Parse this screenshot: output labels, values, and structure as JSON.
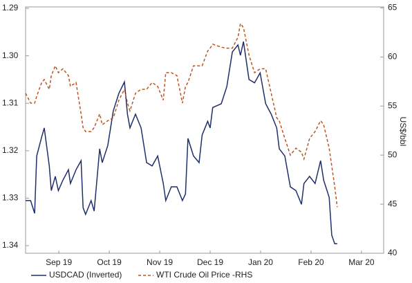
{
  "chart_data": {
    "type": "line",
    "y2label": "US$/bbl",
    "x": [
      -0.16,
      -0.06,
      0.02,
      0.06,
      0.16,
      0.21,
      0.31,
      0.35,
      0.43,
      0.49,
      0.58,
      0.69,
      0.73,
      0.84,
      0.94,
      0.98,
      1.03,
      1.14,
      1.2,
      1.31,
      1.36,
      1.47,
      1.58,
      1.69,
      1.8,
      1.86,
      1.91,
      2.02,
      2.13,
      2.24,
      2.35,
      2.46,
      2.57,
      2.62,
      2.73,
      2.84,
      2.95,
      3.01,
      3.06,
      3.17,
      3.28,
      3.34,
      3.45,
      3.5,
      3.55,
      3.72,
      3.83,
      3.94,
      4.05,
      4.1,
      4.16,
      4.27,
      4.38,
      4.49,
      4.6,
      4.71,
      4.82,
      4.87,
      4.98,
      5.09,
      5.2,
      5.31,
      5.36,
      5.47,
      5.58,
      5.69,
      5.75,
      5.86,
      5.91,
      5.97,
      6.02
    ],
    "series": [
      {
        "name": "USDCAD (Inverted)",
        "color": "#1f2d6b",
        "dash": "none",
        "values": [
          1.3305,
          1.3305,
          1.3332,
          1.3211,
          1.3171,
          1.3152,
          1.3232,
          1.3284,
          1.3254,
          1.3284,
          1.3262,
          1.324,
          1.3269,
          1.324,
          1.3221,
          1.332,
          1.3334,
          1.3305,
          1.3327,
          1.3196,
          1.3225,
          1.3189,
          1.3116,
          1.3079,
          1.3055,
          1.3123,
          1.3152,
          1.3123,
          1.3152,
          1.3225,
          1.3232,
          1.3211,
          1.3269,
          1.3305,
          1.3276,
          1.3276,
          1.3305,
          1.3291,
          1.3174,
          1.3211,
          1.3225,
          1.3167,
          1.3138,
          1.3152,
          1.3109,
          1.3101,
          1.3065,
          1.2992,
          1.2977,
          1.2999,
          1.297,
          1.305,
          1.3057,
          1.3036,
          1.3101,
          1.3123,
          1.3152,
          1.3196,
          1.3211,
          1.3276,
          1.3284,
          1.3313,
          1.3269,
          1.3254,
          1.3269,
          1.3221,
          1.3262,
          1.3298,
          1.3378,
          1.3396,
          1.3396
        ]
      },
      {
        "name": "WTI Crude Oil Price -RHS",
        "color": "#c0521c",
        "dash": "4 3",
        "axis": "y2",
        "values": [
          56.3,
          55.3,
          55.3,
          56.0,
          57.4,
          57.7,
          56.7,
          58.1,
          59.1,
          58.4,
          58.8,
          58.1,
          57.0,
          57.4,
          54.2,
          52.8,
          52.4,
          52.4,
          52.8,
          54.2,
          53.1,
          53.5,
          53.8,
          55.6,
          56.7,
          55.3,
          54.5,
          56.3,
          56.7,
          56.7,
          57.4,
          57.0,
          55.6,
          58.4,
          58.4,
          58.1,
          55.3,
          57.0,
          57.4,
          59.1,
          59.1,
          59.1,
          60.6,
          60.9,
          61.3,
          61.0,
          60.9,
          60.9,
          62.0,
          63.4,
          63.0,
          60.2,
          58.4,
          58.8,
          58.8,
          56.3,
          53.8,
          53.5,
          51.7,
          50.0,
          50.7,
          50.3,
          49.6,
          51.7,
          52.4,
          53.5,
          53.1,
          50.7,
          48.9,
          46.8,
          44.7
        ]
      }
    ],
    "xlim": [
      -0.16,
      6.94
    ],
    "xticks": [
      {
        "value": 0.5,
        "label": "Sep 19"
      },
      {
        "value": 1.5,
        "label": "Oct 19"
      },
      {
        "value": 2.5,
        "label": "Nov 19"
      },
      {
        "value": 3.5,
        "label": "Dec 19"
      },
      {
        "value": 4.5,
        "label": "Jan 20"
      },
      {
        "value": 5.5,
        "label": "Feb 20"
      },
      {
        "value": 6.5,
        "label": "Mar 20"
      }
    ],
    "ylim": [
      1.2897,
      1.3416
    ],
    "y_inverted": true,
    "yticks": [
      1.29,
      {
        "value": 1.3,
        "label": "1.30"
      },
      1.31,
      1.32,
      1.33,
      1.34
    ],
    "y2lim": [
      40,
      65.1
    ],
    "y2ticks": [
      40,
      45,
      50,
      55,
      60,
      65
    ]
  }
}
